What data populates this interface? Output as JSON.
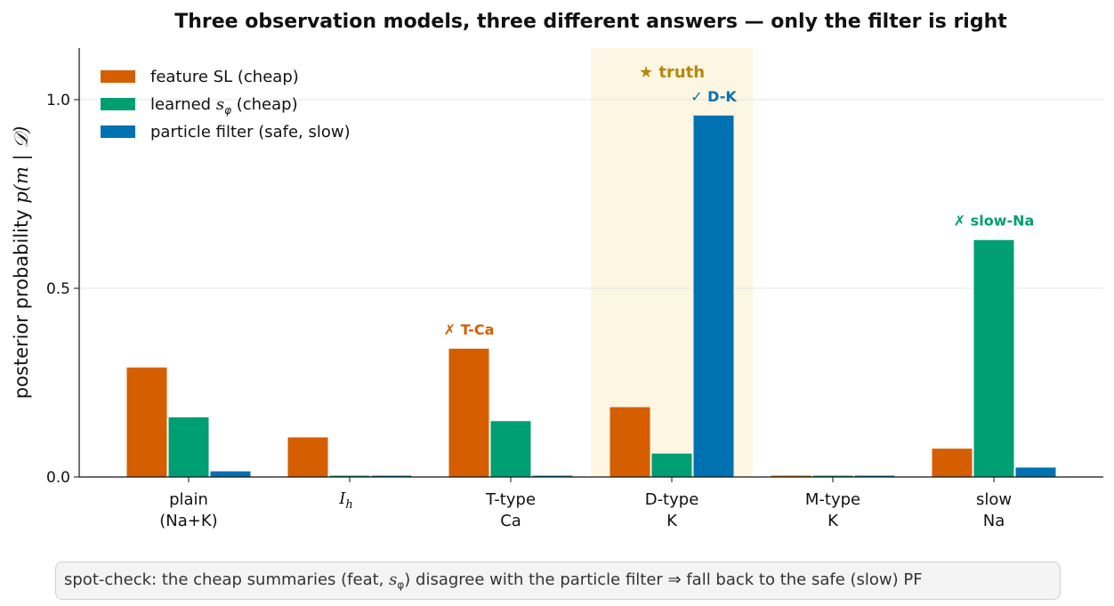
{
  "chart_data": {
    "type": "bar",
    "title": "Three observation models, three different answers — only the filter is right",
    "ylabel": "posterior probability",
    "ylabel_math": "p(m | 𝒟)",
    "ylim": [
      0,
      1.15
    ],
    "yticks": [
      "0.0",
      "0.5",
      "1.0"
    ],
    "ytick_values": [
      0,
      0.5,
      1.0
    ],
    "grid": "horizontal",
    "legend_position": "top-left",
    "categories": [
      [
        "plain",
        "(Na+K)"
      ],
      [
        "I_h"
      ],
      [
        "T-type",
        "Ca"
      ],
      [
        "D-type",
        "K"
      ],
      [
        "M-type",
        "K"
      ],
      [
        "slow",
        "Na"
      ]
    ],
    "series": [
      {
        "name": "feature SL (cheap)",
        "color": "#d55e00",
        "values": [
          0.29,
          0.105,
          0.34,
          0.185,
          0.0,
          0.075
        ]
      },
      {
        "name": "learned s_φ (cheap)",
        "color": "#009e73",
        "values": [
          0.158,
          0.0,
          0.148,
          0.062,
          0.0,
          0.628
        ]
      },
      {
        "name": "particle filter (safe, slow)",
        "color": "#0072b2",
        "values": [
          0.015,
          0.0,
          0.0,
          0.958,
          0.0,
          0.025
        ]
      }
    ],
    "highlight": {
      "category_index": 3,
      "label": "★ truth",
      "color": "#b8860b",
      "fill": "#fdf6e3"
    },
    "annotations": [
      {
        "text": "✗ T-Ca",
        "category_index": 2,
        "series_index": 0,
        "color": "#d55e00"
      },
      {
        "text": "✓ D-K",
        "category_index": 3,
        "series_index": 2,
        "color": "#0072b2"
      },
      {
        "text": "✗ slow-Na",
        "category_index": 5,
        "series_index": 1,
        "color": "#009e73"
      }
    ]
  },
  "footnote": {
    "text_before": "spot-check:  the cheap summaries (feat, ",
    "symbol": "s",
    "subscript": "φ",
    "text_after": ") disagree with the particle filter  ⇒  fall back to the safe (slow) PF"
  }
}
